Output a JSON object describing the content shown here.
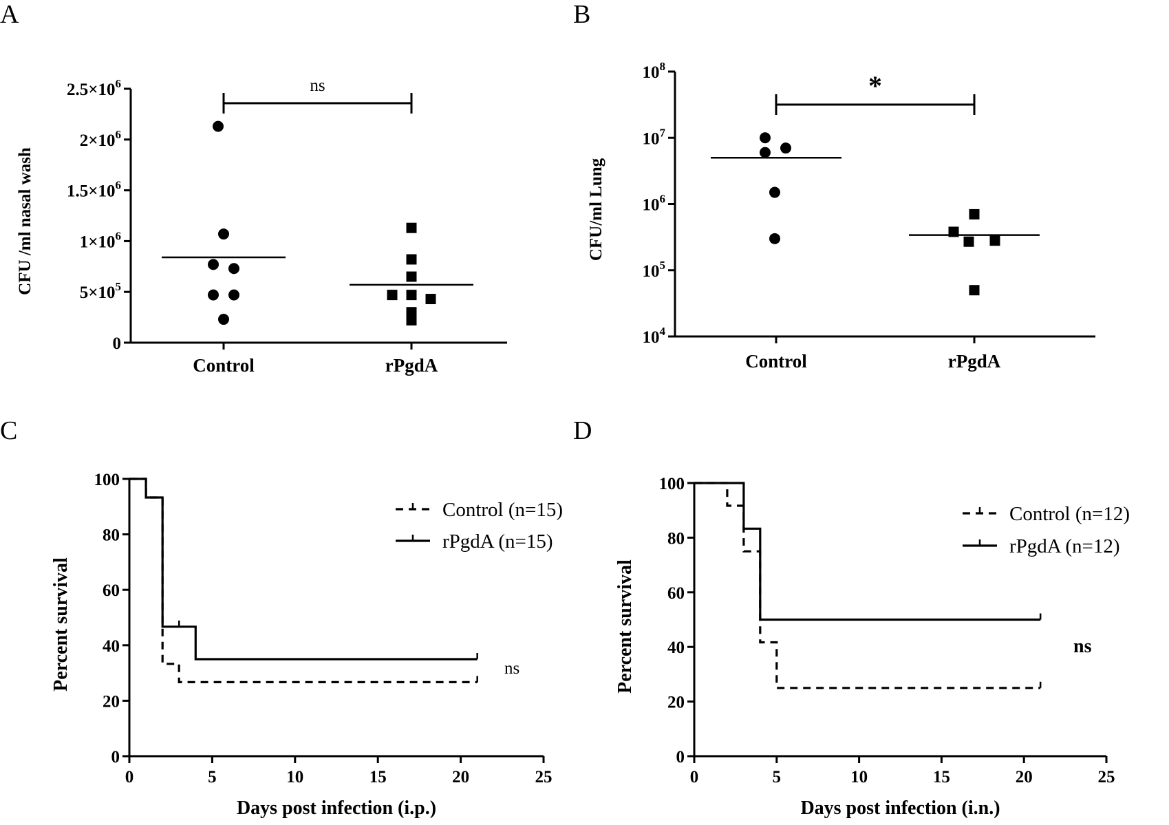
{
  "chart_data": [
    {
      "panel": "A",
      "type": "scatter",
      "ylabel": "CFU /ml nasal wash",
      "xlabel": "",
      "categories": [
        "Control",
        "rPgdA"
      ],
      "ylim": [
        0,
        2500000
      ],
      "yscale": "linear",
      "ytick_labels": [
        "0",
        "5×10⁵",
        "1×10⁶",
        "1.5×10⁶",
        "2×10⁶",
        "2.5×10⁶"
      ],
      "ytick_values": [
        0,
        500000,
        1000000,
        1500000,
        2000000,
        2500000
      ],
      "series": [
        {
          "name": "Control",
          "marker": "circle",
          "values": [
            2130000,
            1070000,
            770000,
            730000,
            470000,
            470000,
            230000
          ],
          "mean": 840000
        },
        {
          "name": "rPgdA",
          "marker": "square",
          "values": [
            1130000,
            820000,
            650000,
            470000,
            470000,
            430000,
            300000,
            220000
          ],
          "mean": 570000
        }
      ],
      "significance": "ns"
    },
    {
      "panel": "B",
      "type": "scatter",
      "ylabel": "CFU/ml Lung",
      "xlabel": "",
      "categories": [
        "Control",
        "rPgdA"
      ],
      "ylim": [
        10000,
        100000000
      ],
      "yscale": "log",
      "ytick_labels": [
        {
          "base": "10",
          "exp": "4"
        },
        {
          "base": "10",
          "exp": "5"
        },
        {
          "base": "10",
          "exp": "6"
        },
        {
          "base": "10",
          "exp": "7"
        },
        {
          "base": "10",
          "exp": "8"
        }
      ],
      "ytick_values": [
        10000,
        100000,
        1000000,
        10000000,
        100000000
      ],
      "series": [
        {
          "name": "Control",
          "marker": "circle",
          "values": [
            10000000,
            6000000,
            7000000,
            1500000,
            300000
          ],
          "mean": 5000000
        },
        {
          "name": "rPgdA",
          "marker": "square",
          "values": [
            700000,
            380000,
            270000,
            280000,
            50000
          ],
          "mean": 340000
        }
      ],
      "significance": "*"
    },
    {
      "panel": "C",
      "type": "line",
      "xlabel": "Days post infection (i.p.)",
      "ylabel": "Percent survival",
      "xlim": [
        0,
        25
      ],
      "ylim": [
        0,
        100
      ],
      "xticks": [
        0,
        5,
        10,
        15,
        20,
        25
      ],
      "yticks": [
        0,
        20,
        40,
        60,
        80,
        100
      ],
      "series": [
        {
          "name": "Control (n=15)",
          "style": "dashed",
          "x": [
            0,
            1,
            2,
            3,
            21
          ],
          "y": [
            100,
            93.3,
            33.3,
            26.7,
            26.7
          ],
          "censor_x": [
            21
          ]
        },
        {
          "name": "rPgdA (n=15)",
          "style": "solid",
          "x": [
            0,
            1,
            2,
            4,
            21
          ],
          "y": [
            100,
            93.3,
            46.7,
            35,
            35
          ],
          "censor_x": [
            3,
            21
          ]
        }
      ],
      "significance": "ns"
    },
    {
      "panel": "D",
      "type": "line",
      "xlabel": "Days post infection (i.n.)",
      "ylabel": "Percent survival",
      "xlim": [
        0,
        25
      ],
      "ylim": [
        0,
        100
      ],
      "xticks": [
        0,
        5,
        10,
        15,
        20,
        25
      ],
      "yticks": [
        0,
        20,
        40,
        60,
        80,
        100
      ],
      "series": [
        {
          "name": "Control (n=12)",
          "style": "dashed",
          "x": [
            0,
            2,
            3,
            4,
            5,
            21
          ],
          "y": [
            100,
            91.7,
            75,
            41.7,
            25,
            25
          ],
          "censor_x": [
            21
          ]
        },
        {
          "name": "rPgdA (n=12)",
          "style": "solid",
          "x": [
            0,
            3,
            4,
            21
          ],
          "y": [
            100,
            83.3,
            50,
            50
          ],
          "censor_x": [
            21
          ]
        }
      ],
      "significance": "ns"
    }
  ]
}
